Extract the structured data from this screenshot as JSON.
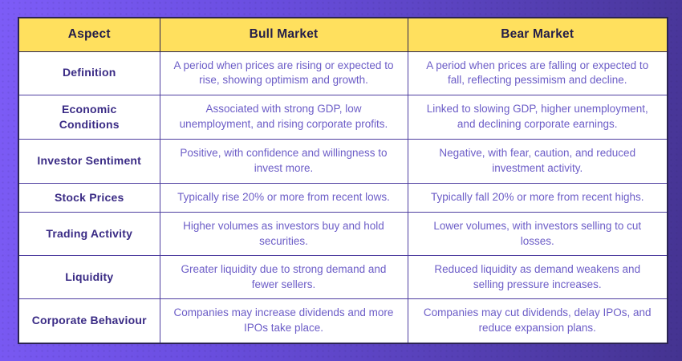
{
  "chart_data": {
    "type": "table",
    "columns": [
      "Aspect",
      "Bull Market",
      "Bear Market"
    ],
    "rows": [
      {
        "aspect": "Definition",
        "bull": "A period when prices are rising or expected to rise, showing optimism and growth.",
        "bear": "A period when prices are falling or expected to fall, reflecting pessimism and decline."
      },
      {
        "aspect": "Economic Conditions",
        "bull": "Associated with strong GDP, low unemployment, and rising corporate profits.",
        "bear": "Linked to slowing GDP, higher unemployment, and declining corporate earnings."
      },
      {
        "aspect": "Investor Sentiment",
        "bull": "Positive, with confidence and willingness to invest more.",
        "bear": "Negative, with fear, caution, and reduced investment activity."
      },
      {
        "aspect": "Stock Prices",
        "bull": "Typically rise 20% or more from recent lows.",
        "bear": "Typically fall 20% or more from recent highs."
      },
      {
        "aspect": "Trading Activity",
        "bull": "Higher volumes as investors buy and hold securities.",
        "bear": "Lower volumes, with investors selling to cut losses."
      },
      {
        "aspect": "Liquidity",
        "bull": "Greater liquidity due to strong demand and fewer sellers.",
        "bear": "Reduced liquidity as demand weakens and selling pressure increases."
      },
      {
        "aspect": "Corporate Behaviour",
        "bull": "Companies may increase dividends and more IPOs take place.",
        "bear": "Companies may cut dividends, delay IPOs, and reduce expansion plans."
      }
    ]
  },
  "colors": {
    "background_gradient_start": "#7d5cf7",
    "background_gradient_mid": "#6a4ee0",
    "background_gradient_end": "#443390",
    "header_background": "#ffe05e",
    "header_text": "#241e49",
    "aspect_text": "#3a2b85",
    "body_text": "#6c5dc7",
    "grid_line": "#4f3fa0",
    "outer_border": "#2b2451",
    "cell_background": "#ffffff"
  }
}
